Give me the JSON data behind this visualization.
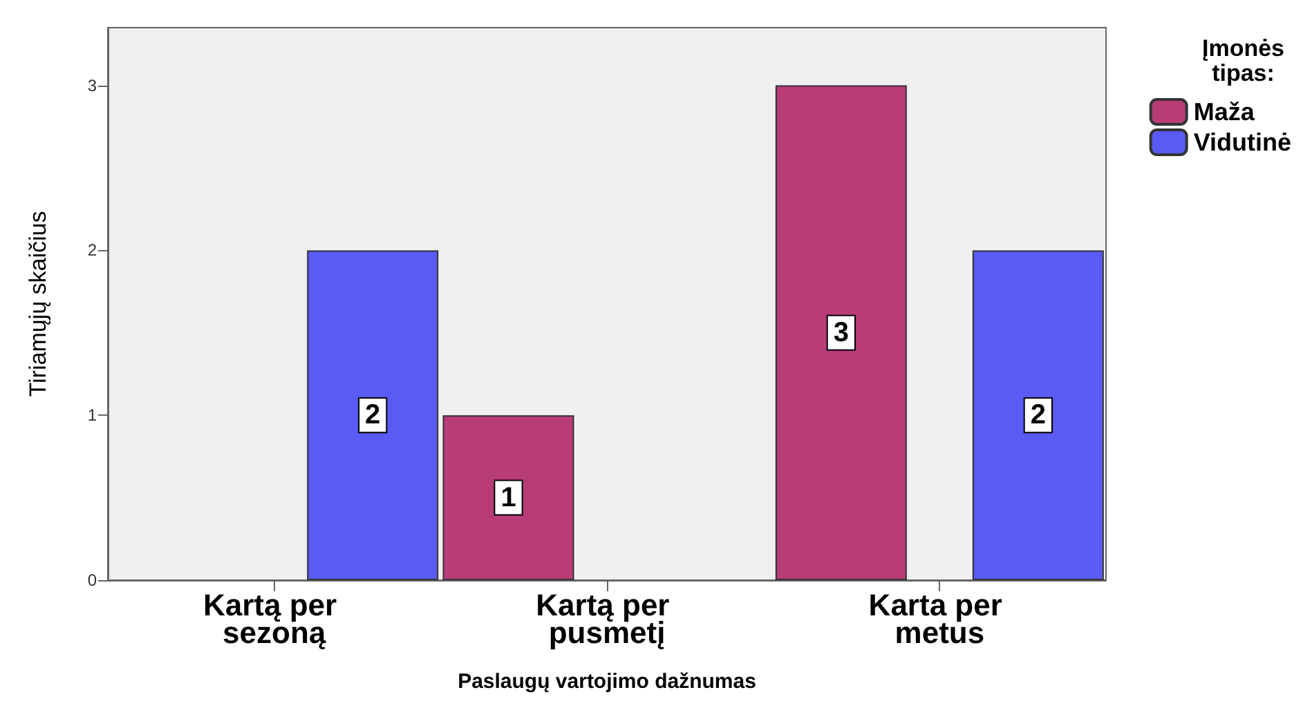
{
  "chart_data": {
    "type": "bar",
    "xlabel": "Paslaugų vartojimo dažnumas",
    "ylabel": "Tiriamųjų skaičius",
    "legend_title": "Įmonės tipas:",
    "categories": [
      "Kartą per sezoną",
      "Kartą per pusmetį",
      "Karta per metus"
    ],
    "series": [
      {
        "name": "Maža",
        "color": "#b83c78",
        "values": [
          null,
          1,
          3
        ]
      },
      {
        "name": "Vidutinė",
        "color": "#5a5af5",
        "values": [
          2,
          null,
          2
        ]
      }
    ],
    "ylim": [
      0,
      3.35
    ],
    "yticks": [
      0,
      1,
      2,
      3
    ],
    "grid": false,
    "legend": "top right",
    "data_labels": true
  }
}
